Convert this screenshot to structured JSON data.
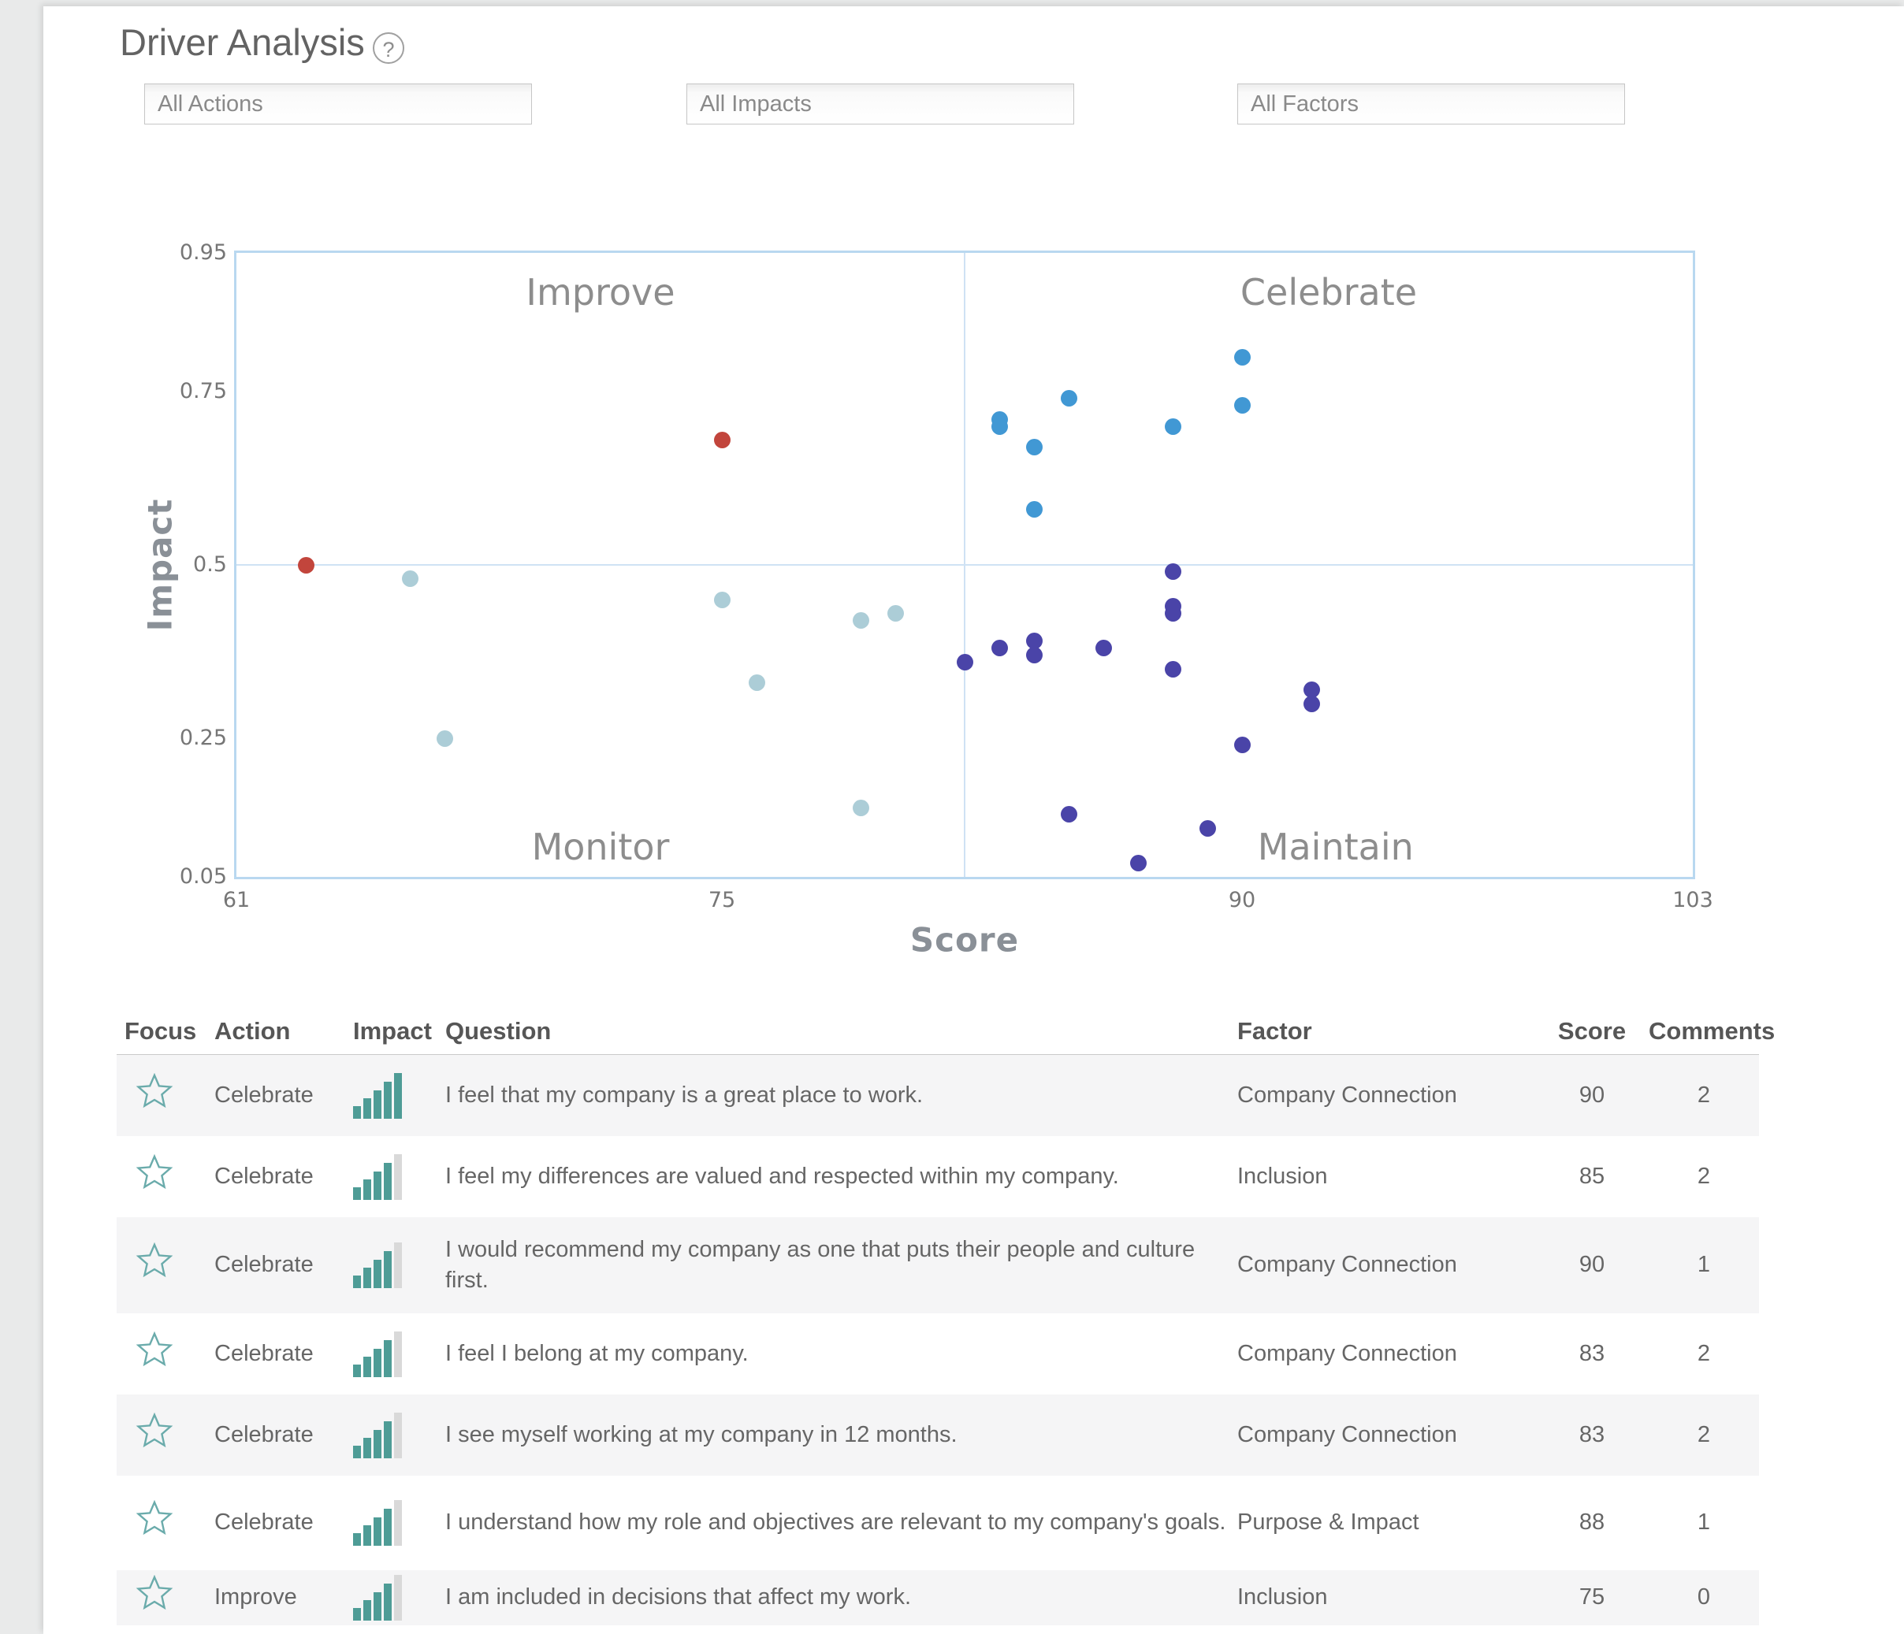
{
  "page": {
    "title": "Driver Analysis",
    "help_label": "?"
  },
  "filters": [
    {
      "label": "All Actions"
    },
    {
      "label": "All Impacts"
    },
    {
      "label": "All Factors"
    }
  ],
  "chart_data": {
    "type": "scatter",
    "xlabel": "Score",
    "ylabel": "Impact",
    "xlim": [
      61,
      103
    ],
    "ylim": [
      0.05,
      0.95
    ],
    "x_ticks": [
      61,
      75,
      90,
      103
    ],
    "y_ticks": [
      0.95,
      0.75,
      0.5,
      0.25,
      0.05
    ],
    "grid": "quadrant-dividers-only",
    "divider_x": 82,
    "divider_y": 0.5,
    "quadrants": {
      "top_left": "Improve",
      "top_right": "Celebrate",
      "bottom_left": "Monitor",
      "bottom_right": "Maintain"
    },
    "series": [
      {
        "name": "improve-priority",
        "color": "#c2453c",
        "points": [
          [
            63,
            0.5
          ],
          [
            75,
            0.68
          ]
        ]
      },
      {
        "name": "monitor",
        "color": "#accdd7",
        "points": [
          [
            66,
            0.48
          ],
          [
            67,
            0.25
          ],
          [
            75,
            0.45
          ],
          [
            76,
            0.33
          ],
          [
            79,
            0.42
          ],
          [
            80,
            0.43
          ],
          [
            79,
            0.15
          ]
        ]
      },
      {
        "name": "celebrate",
        "color": "#4198d4",
        "points": [
          [
            90,
            0.8
          ],
          [
            85,
            0.74
          ],
          [
            90,
            0.73
          ],
          [
            83,
            0.71
          ],
          [
            83,
            0.7
          ],
          [
            88,
            0.7
          ],
          [
            84,
            0.67
          ],
          [
            84,
            0.58
          ]
        ]
      },
      {
        "name": "maintain",
        "color": "#4a44a8",
        "points": [
          [
            88,
            0.49
          ],
          [
            88,
            0.44
          ],
          [
            88,
            0.43
          ],
          [
            86,
            0.38
          ],
          [
            84,
            0.39
          ],
          [
            84,
            0.37
          ],
          [
            83,
            0.38
          ],
          [
            82,
            0.36
          ],
          [
            88,
            0.35
          ],
          [
            92,
            0.32
          ],
          [
            92,
            0.3
          ],
          [
            90,
            0.24
          ],
          [
            85,
            0.14
          ],
          [
            89,
            0.12
          ],
          [
            87,
            0.07
          ]
        ]
      }
    ]
  },
  "table": {
    "columns": [
      "Focus",
      "Action",
      "Impact",
      "Question",
      "Factor",
      "Score",
      "Comments"
    ],
    "impact_scale_max": 5,
    "teal": "#4e9c96",
    "bar_gray": "#d9d9d9",
    "star_color": "#6aabab",
    "rows": [
      {
        "action": "Celebrate",
        "impact_level": 5,
        "question": "I feel that my company is a great place to work.",
        "factor": "Company Connection",
        "score": "90",
        "comments": "2"
      },
      {
        "action": "Celebrate",
        "impact_level": 4,
        "question": "I feel my differences are valued and respected within my company.",
        "factor": "Inclusion",
        "score": "85",
        "comments": "2"
      },
      {
        "action": "Celebrate",
        "impact_level": 4,
        "question": "I would recommend my company as one that puts their people and culture first.",
        "factor": "Company Connection",
        "score": "90",
        "comments": "1"
      },
      {
        "action": "Celebrate",
        "impact_level": 4,
        "question": "I feel I belong at my company.",
        "factor": "Company Connection",
        "score": "83",
        "comments": "2"
      },
      {
        "action": "Celebrate",
        "impact_level": 4,
        "question": "I see myself working at my company in 12 months.",
        "factor": "Company Connection",
        "score": "83",
        "comments": "2"
      },
      {
        "action": "Celebrate",
        "impact_level": 4,
        "question": "I understand how my role and objectives are relevant to my company's goals.",
        "factor": "Purpose & Impact",
        "score": "88",
        "comments": "1"
      },
      {
        "action": "Improve",
        "impact_level": 4,
        "question": "I am included in decisions that affect my work.",
        "factor": "Inclusion",
        "score": "75",
        "comments": "0"
      }
    ]
  }
}
